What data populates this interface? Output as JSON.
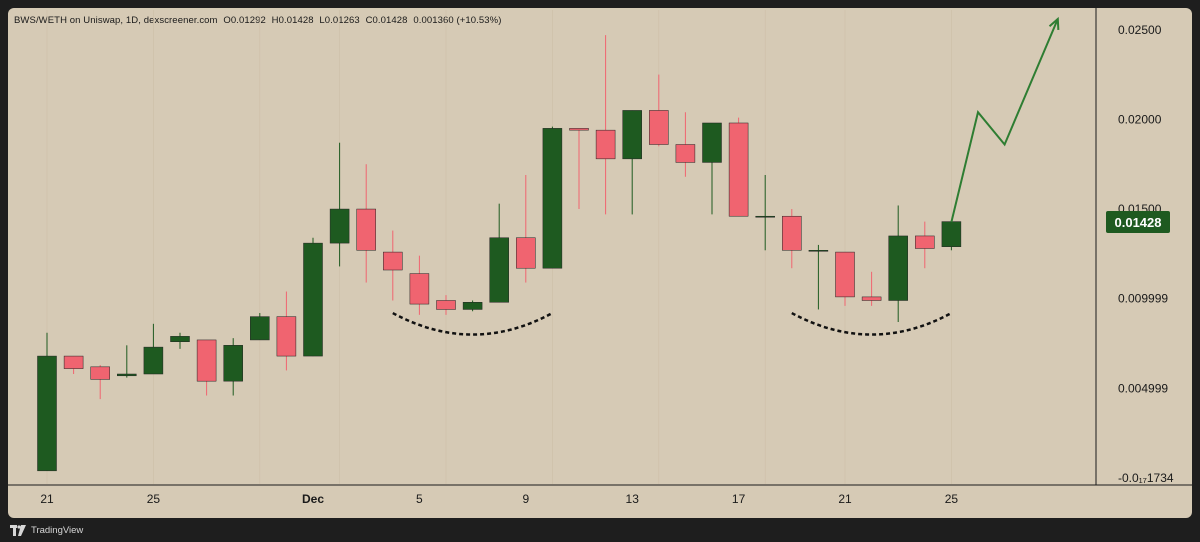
{
  "header": {
    "pair": "BWS/WETH on Uniswap, 1D, dexscreener.com",
    "open": "O0.01292",
    "high": "H0.01428",
    "low": "L0.01263",
    "close": "C0.01428",
    "change": "0.001360 (+10.53%)"
  },
  "footer": {
    "brand": "TradingView"
  },
  "colors": {
    "background": "#d6cab5",
    "up": "#1e5a20",
    "down": "#f06470",
    "accent": "#2e7d32"
  },
  "chart_data": {
    "type": "candlestick",
    "y_ticks": [
      {
        "value": 0.025,
        "label": "0.02500"
      },
      {
        "value": 0.02,
        "label": "0.02000"
      },
      {
        "value": 0.015,
        "label": "0.01500"
      },
      {
        "value": 0.01,
        "label": "0.009999"
      },
      {
        "value": 0.005,
        "label": "0.004999"
      },
      {
        "value": 0.0,
        "label": "-0.0₁₇1734"
      }
    ],
    "x_ticks": [
      "21",
      "25",
      "Dec",
      "5",
      "9",
      "13",
      "17",
      "21",
      "25"
    ],
    "last_price": {
      "value": 0.01428,
      "label": "0.01428"
    },
    "candles": [
      {
        "open": 0.0004,
        "high": 0.0081,
        "low": 0.0004,
        "close": 0.0068
      },
      {
        "open": 0.0068,
        "high": 0.0068,
        "low": 0.0058,
        "close": 0.0061
      },
      {
        "open": 0.0062,
        "high": 0.0063,
        "low": 0.0044,
        "close": 0.0055
      },
      {
        "open": 0.0057,
        "high": 0.0074,
        "low": 0.0056,
        "close": 0.0058
      },
      {
        "open": 0.0058,
        "high": 0.0086,
        "low": 0.0058,
        "close": 0.0073
      },
      {
        "open": 0.0076,
        "high": 0.0081,
        "low": 0.0072,
        "close": 0.0079
      },
      {
        "open": 0.0077,
        "high": 0.0077,
        "low": 0.0046,
        "close": 0.0054
      },
      {
        "open": 0.0054,
        "high": 0.0078,
        "low": 0.0046,
        "close": 0.0074
      },
      {
        "open": 0.0077,
        "high": 0.0092,
        "low": 0.0077,
        "close": 0.009
      },
      {
        "open": 0.009,
        "high": 0.0104,
        "low": 0.006,
        "close": 0.0068
      },
      {
        "open": 0.0068,
        "high": 0.0134,
        "low": 0.0068,
        "close": 0.0131
      },
      {
        "open": 0.0131,
        "high": 0.0187,
        "low": 0.0118,
        "close": 0.015
      },
      {
        "open": 0.015,
        "high": 0.0175,
        "low": 0.0109,
        "close": 0.0127
      },
      {
        "open": 0.0126,
        "high": 0.0138,
        "low": 0.0099,
        "close": 0.0116
      },
      {
        "open": 0.0114,
        "high": 0.0124,
        "low": 0.0091,
        "close": 0.0097
      },
      {
        "open": 0.0099,
        "high": 0.0102,
        "low": 0.0091,
        "close": 0.0094
      },
      {
        "open": 0.0094,
        "high": 0.0099,
        "low": 0.0093,
        "close": 0.0098
      },
      {
        "open": 0.0098,
        "high": 0.0153,
        "low": 0.0098,
        "close": 0.0134
      },
      {
        "open": 0.0134,
        "high": 0.0169,
        "low": 0.0109,
        "close": 0.0117
      },
      {
        "open": 0.0117,
        "high": 0.0196,
        "low": 0.0117,
        "close": 0.0195
      },
      {
        "open": 0.0195,
        "high": 0.0195,
        "low": 0.015,
        "close": 0.0194
      },
      {
        "open": 0.0194,
        "high": 0.0247,
        "low": 0.0147,
        "close": 0.0178
      },
      {
        "open": 0.0178,
        "high": 0.0205,
        "low": 0.0147,
        "close": 0.0205
      },
      {
        "open": 0.0205,
        "high": 0.0225,
        "low": 0.0185,
        "close": 0.0186
      },
      {
        "open": 0.0186,
        "high": 0.0204,
        "low": 0.0168,
        "close": 0.0176
      },
      {
        "open": 0.0176,
        "high": 0.0198,
        "low": 0.0147,
        "close": 0.0198
      },
      {
        "open": 0.0198,
        "high": 0.0201,
        "low": 0.0146,
        "close": 0.0146
      },
      {
        "open": 0.0146,
        "high": 0.0169,
        "low": 0.0127,
        "close": 0.0146
      },
      {
        "open": 0.0146,
        "high": 0.015,
        "low": 0.0117,
        "close": 0.0127
      },
      {
        "open": 0.0127,
        "high": 0.013,
        "low": 0.0094,
        "close": 0.0127
      },
      {
        "open": 0.0126,
        "high": 0.0126,
        "low": 0.0096,
        "close": 0.0101
      },
      {
        "open": 0.0101,
        "high": 0.0115,
        "low": 0.0096,
        "close": 0.0099
      },
      {
        "open": 0.0099,
        "high": 0.0152,
        "low": 0.0087,
        "close": 0.0135
      },
      {
        "open": 0.0135,
        "high": 0.0143,
        "low": 0.0117,
        "close": 0.0128
      },
      {
        "open": 0.0129,
        "high": 0.0143,
        "low": 0.0127,
        "close": 0.0143
      }
    ],
    "annotations": {
      "arcs": [
        {
          "from_index": 13,
          "to_index": 19,
          "floor": 0.0092,
          "depth": 0.0012
        },
        {
          "from_index": 28,
          "to_index": 34,
          "floor": 0.0092,
          "depth": 0.0012
        }
      ],
      "projection": [
        {
          "index": 34,
          "value": 0.01428
        },
        {
          "index": 35,
          "value": 0.0204
        },
        {
          "index": 36,
          "value": 0.0186
        },
        {
          "index": 38,
          "value": 0.0256
        }
      ]
    }
  }
}
